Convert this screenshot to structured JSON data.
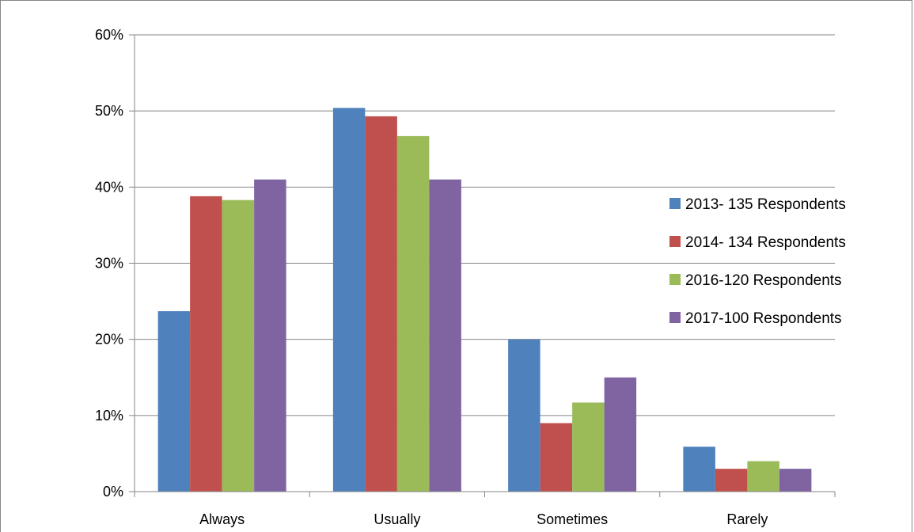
{
  "chart_data": {
    "type": "bar",
    "title": "",
    "xlabel": "",
    "ylabel": "",
    "categories": [
      "Always",
      "Usually",
      "Sometimes",
      "Rarely"
    ],
    "y_tick_labels": [
      "0%",
      "10%",
      "20%",
      "30%",
      "40%",
      "50%",
      "60%"
    ],
    "ylim": [
      0,
      60
    ],
    "y_unit": "%",
    "grid": true,
    "legend_position": "right",
    "series": [
      {
        "name": "2013- 135 Respondents",
        "color": "#4F81BD",
        "values": [
          23.7,
          50.4,
          20.0,
          5.9
        ]
      },
      {
        "name": "2014-  134 Respondents",
        "color": "#C0504D",
        "values": [
          38.8,
          49.3,
          9.0,
          3.0
        ]
      },
      {
        "name": "2016-120 Respondents",
        "color": "#9BBB59",
        "values": [
          38.3,
          46.7,
          11.7,
          4.0
        ]
      },
      {
        "name": "2017-100 Respondents",
        "color": "#8064A2",
        "values": [
          41.0,
          41.0,
          15.0,
          3.0
        ]
      }
    ]
  }
}
